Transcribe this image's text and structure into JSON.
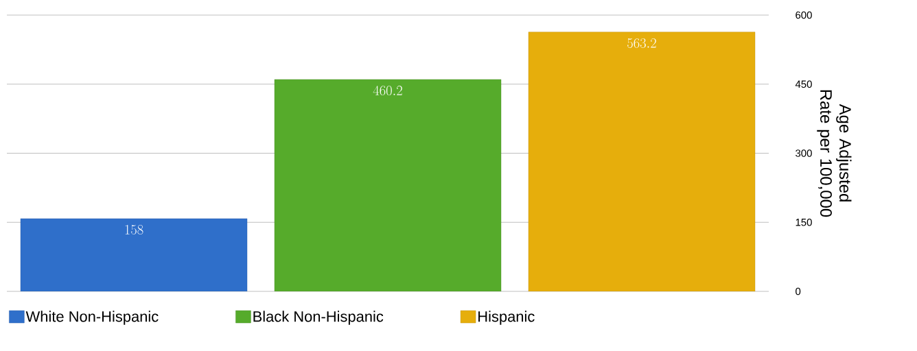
{
  "chart_data": {
    "type": "bar",
    "categories": [
      null,
      null,
      null
    ],
    "series": [
      {
        "name": "White Non-Hispanic",
        "color": "#2f6fca",
        "values": [
          158,
          null,
          null
        ]
      },
      {
        "name": "Black Non-Hispanic",
        "color": "#56ab2b",
        "values": [
          null,
          460.2,
          null
        ]
      },
      {
        "name": "Hispanic",
        "color": "#e6ae0c",
        "values": [
          null,
          null,
          563.2
        ]
      }
    ],
    "ylabel": "Age Adjusted Rate per 100,000",
    "ylim": [
      0,
      600
    ],
    "yticks": [
      0,
      150,
      300,
      450,
      600
    ],
    "grid": "y",
    "legend": "bottom",
    "data_labels": true
  }
}
